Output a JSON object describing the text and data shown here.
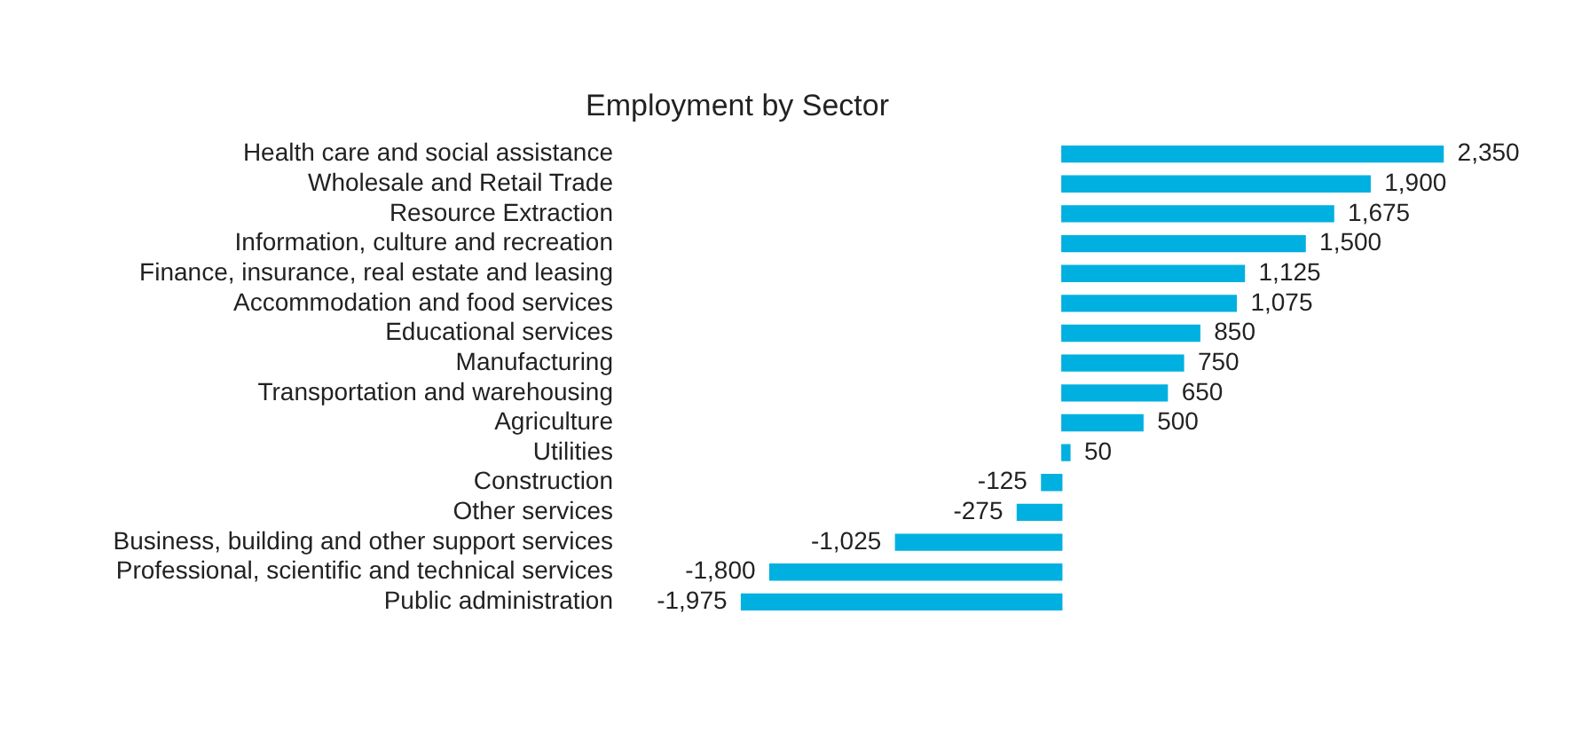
{
  "chart_data": {
    "type": "bar",
    "orientation": "horizontal",
    "title": "Employment by Sector",
    "categories": [
      "Health care and social assistance",
      "Wholesale and Retail Trade",
      "Resource Extraction",
      "Information, culture and recreation",
      "Finance, insurance, real estate and leasing",
      "Accommodation and food services",
      "Educational services",
      "Manufacturing",
      "Transportation and warehousing",
      "Agriculture",
      "Utilities",
      "Construction",
      "Other services",
      "Business, building and other support services",
      "Professional, scientific and technical services",
      "Public administration"
    ],
    "values": [
      2350,
      1900,
      1675,
      1500,
      1125,
      1075,
      850,
      750,
      650,
      500,
      50,
      -125,
      -275,
      -1025,
      -1800,
      -1975
    ],
    "color": "#00b0e0",
    "value_labels": [
      "2,350",
      "1,900",
      "1,675",
      "1,500",
      "1,125",
      "1,075",
      "850",
      "750",
      "650",
      "500",
      "50",
      "-125",
      "-275",
      "-1,025",
      "-1,800",
      "-1,975"
    ],
    "tick_labels": "y",
    "grid": false,
    "legend": false
  }
}
